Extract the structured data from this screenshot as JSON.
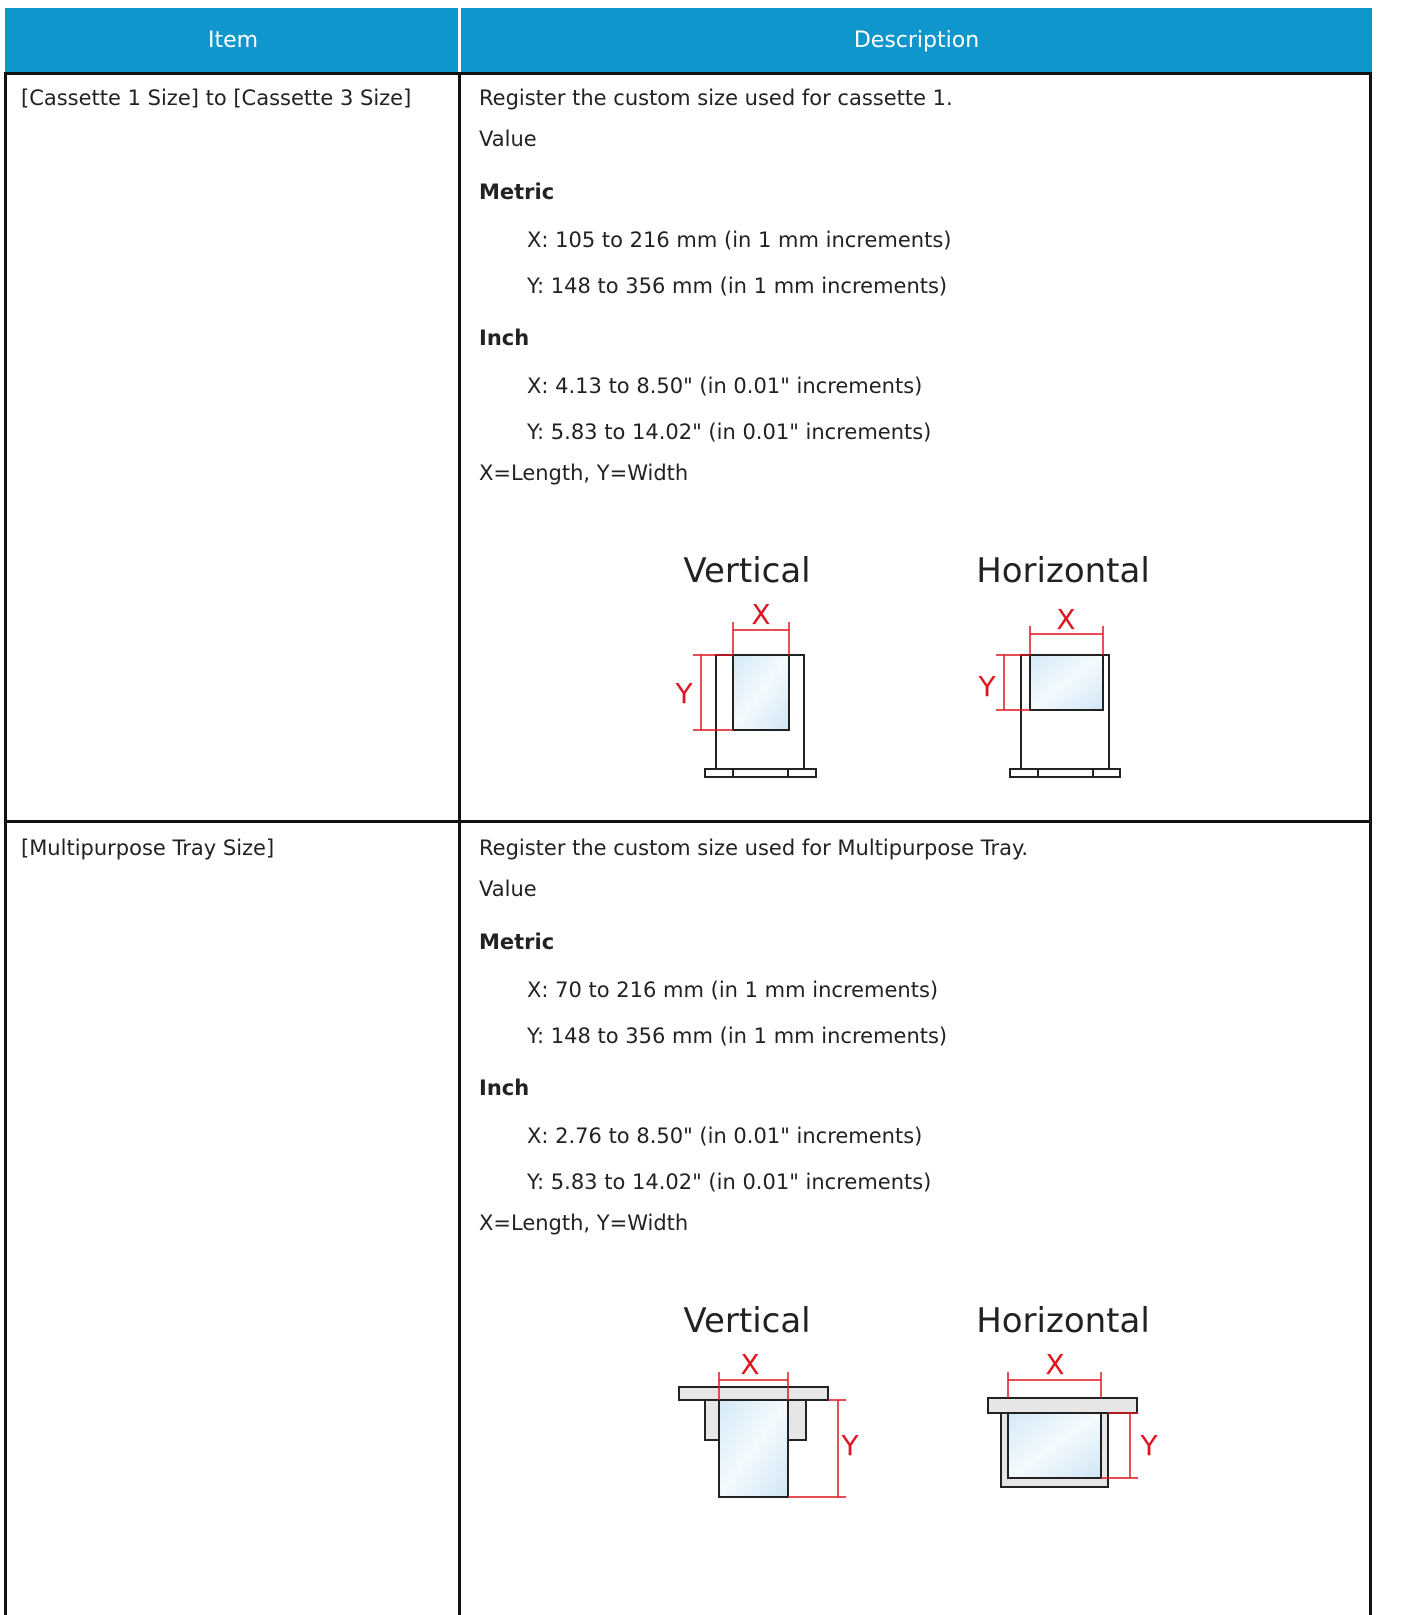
{
  "table": {
    "header": [
      "Item",
      "Description"
    ],
    "rows": [
      {
        "item": "[Cassette 1 Size] to [Cassette 3 Size]",
        "intro": "Register the custom size used for cassette 1.",
        "value_label": "Value",
        "groups": [
          {
            "heading": "Metric",
            "lines": [
              "X: 105 to 216 mm (in 1 mm increments)",
              "Y: 148 to 356 mm (in 1 mm increments)"
            ]
          },
          {
            "heading": "Inch",
            "lines": [
              "X: 4.13 to 8.50\" (in 0.01\" increments)",
              "Y: 5.83 to 14.02\" (in 0.01\" increments)"
            ]
          }
        ],
        "note": "X=Length, Y=Width",
        "figure": {
          "vertical": "Vertical",
          "horizontal": "Horizontal",
          "x_label": "X",
          "y_label": "Y"
        }
      },
      {
        "item": "[Multipurpose Tray Size]",
        "intro": "Register the custom size used for Multipurpose Tray.",
        "value_label": "Value",
        "groups": [
          {
            "heading": "Metric",
            "lines": [
              "X: 70 to 216 mm (in 1 mm increments)",
              "Y: 148 to 356 mm (in 1 mm increments)"
            ]
          },
          {
            "heading": "Inch",
            "lines": [
              "X: 2.76 to 8.50\" (in 0.01\" increments)",
              "Y: 5.83 to 14.02\" (in 0.01\" increments)"
            ]
          }
        ],
        "note": "X=Length, Y=Width",
        "figure": {
          "vertical": "Vertical",
          "horizontal": "Horizontal",
          "x_label": "X",
          "y_label": "Y"
        }
      }
    ]
  }
}
